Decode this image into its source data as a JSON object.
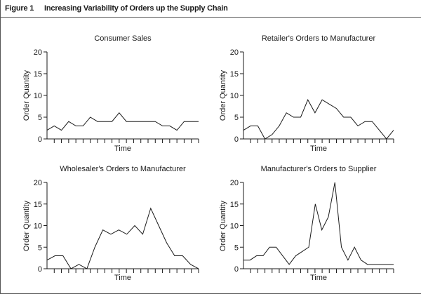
{
  "figure": {
    "label": "Figure 1",
    "title": "Increasing Variability of Orders up the Supply Chain"
  },
  "chart_data": [
    {
      "type": "line",
      "title": "Consumer Sales",
      "xlabel": "Time",
      "ylabel": "Order Quantity",
      "ylim": [
        0,
        20
      ],
      "yticks": [
        0,
        5,
        10,
        15,
        20
      ],
      "x_ticks_count": 21,
      "series": [
        {
          "values": [
            2,
            3,
            2,
            4,
            3,
            3,
            5,
            4,
            4,
            4,
            6,
            4,
            4,
            4,
            4,
            4,
            3,
            3,
            2,
            4,
            4,
            4
          ]
        }
      ],
      "grid": false
    },
    {
      "type": "line",
      "title": "Retailer's Orders to Manufacturer",
      "xlabel": "Time",
      "ylabel": "Order Quantity",
      "ylim": [
        0,
        20
      ],
      "yticks": [
        0,
        5,
        10,
        15,
        20
      ],
      "x_ticks_count": 21,
      "series": [
        {
          "values": [
            2,
            3,
            3,
            0,
            1,
            3,
            6,
            5,
            5,
            9,
            6,
            9,
            8,
            7,
            5,
            5,
            3,
            4,
            4,
            2,
            0,
            2
          ]
        }
      ],
      "grid": false
    },
    {
      "type": "line",
      "title": "Wholesaler's Orders to Manufacturer",
      "xlabel": "Time",
      "ylabel": "Order Quantity",
      "ylim": [
        0,
        20
      ],
      "yticks": [
        0,
        5,
        10,
        15,
        20
      ],
      "x_ticks_count": 21,
      "series": [
        {
          "values": [
            2,
            3,
            3,
            0,
            1,
            0,
            5,
            9,
            8,
            9,
            8,
            10,
            8,
            14,
            10,
            6,
            3,
            3,
            1,
            0
          ]
        }
      ],
      "grid": false
    },
    {
      "type": "line",
      "title": "Manufacturer's Orders to Supplier",
      "xlabel": "Time",
      "ylabel": "Order Quantity",
      "ylim": [
        0,
        20
      ],
      "yticks": [
        0,
        5,
        10,
        15,
        20
      ],
      "x_ticks_count": 21,
      "series": [
        {
          "values": [
            2,
            2,
            3,
            3,
            5,
            5,
            3,
            1,
            3,
            4,
            5,
            15,
            9,
            12,
            20,
            5,
            2,
            5,
            2,
            1,
            1,
            1,
            1,
            1
          ]
        }
      ],
      "grid": false
    }
  ]
}
